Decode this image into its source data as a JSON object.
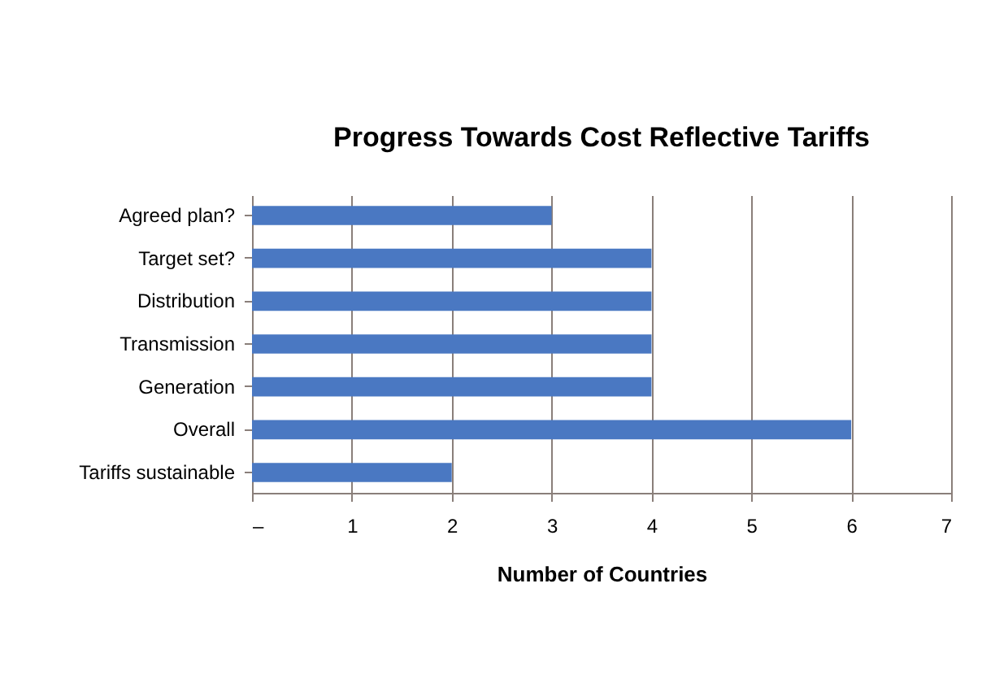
{
  "chart_data": {
    "type": "bar",
    "orientation": "horizontal",
    "title": "Progress Towards Cost Reflective Tariffs",
    "xlabel": "Number of Countries",
    "categories": [
      "Agreed plan?",
      "Target set?",
      "Distribution",
      "Transmission",
      "Generation",
      "Overall",
      "Tariffs sustainable"
    ],
    "values": [
      3,
      4,
      4,
      4,
      4,
      6,
      2
    ],
    "color": "#4a78c2",
    "xlim": [
      0,
      7
    ],
    "xticks": [
      {
        "value": 0,
        "label": "–"
      },
      1,
      2,
      3,
      4,
      5,
      6,
      7
    ],
    "grid": "x"
  }
}
